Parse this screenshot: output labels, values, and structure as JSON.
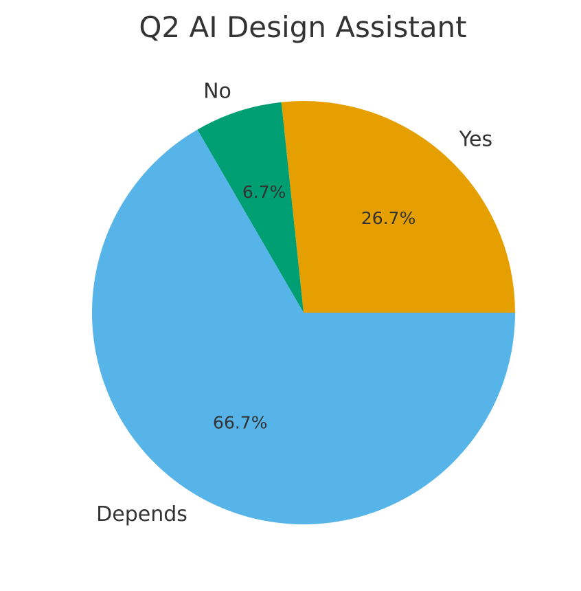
{
  "chart_data": {
    "type": "pie",
    "title": "Q2 AI Design Assistant",
    "categories": [
      "Yes",
      "No",
      "Depends"
    ],
    "values": [
      26.7,
      6.7,
      66.7
    ],
    "percent_labels": [
      "26.7%",
      "6.7%",
      "66.7%"
    ],
    "colors": [
      "#E69F00",
      "#009E73",
      "#56B4E9"
    ],
    "start_angle_deg": 0,
    "direction": "counterclockwise",
    "legend": "none"
  }
}
